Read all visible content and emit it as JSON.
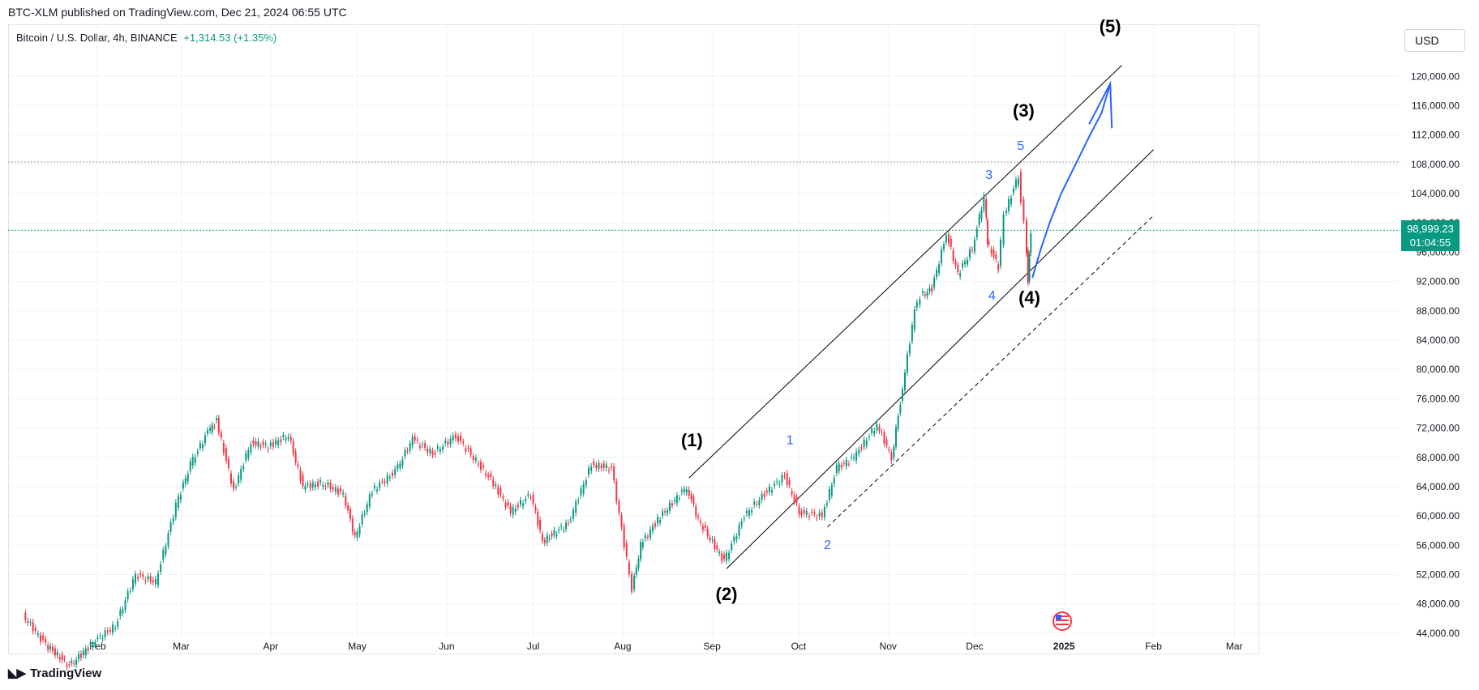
{
  "header": {
    "publication": "BTC-XLM published on TradingView.com, Dec 21, 2024 06:55 UTC"
  },
  "symbol": {
    "title": "Bitcoin / U.S. Dollar, 4h, BINANCE",
    "change": "+1,314.53 (+1.35%)"
  },
  "currency_button": "USD",
  "last_price": {
    "value": "98,999.23",
    "countdown": "01:04:55",
    "color": "#089981"
  },
  "footer": {
    "brand": "TradingView",
    "logo_icon": "tradingview-logo-icon"
  },
  "icons": {
    "event": "us-flag-event-icon"
  },
  "colors": {
    "up": "#089981",
    "down": "#f23645",
    "wave_blue": "#2962ff",
    "channel": "#000000"
  },
  "chart_data": {
    "type": "line",
    "title": "Bitcoin / U.S. Dollar, 4h, BINANCE",
    "xlabel": "",
    "ylabel": "",
    "x_ticks": [
      "Feb",
      "Mar",
      "Apr",
      "May",
      "Jun",
      "Jul",
      "Aug",
      "Sep",
      "Oct",
      "Nov",
      "Dec",
      "2025",
      "Feb",
      "Mar"
    ],
    "y_ticks": [
      "44,000.00",
      "48,000.00",
      "52,000.00",
      "56,000.00",
      "60,000.00",
      "64,000.00",
      "68,000.00",
      "72,000.00",
      "76,000.00",
      "80,000.00",
      "84,000.00",
      "88,000.00",
      "92,000.00",
      "96,000.00",
      "100,000.00",
      "104,000.00",
      "108,000.00",
      "112,000.00",
      "116,000.00",
      "120,000.00"
    ],
    "ylim": [
      42000,
      126000
    ],
    "grid": true,
    "series": [
      {
        "x": [
          "2024-01-07",
          "2024-01-14",
          "2024-01-23",
          "2024-02-01",
          "2024-02-08",
          "2024-02-15",
          "2024-02-22",
          "2024-02-29",
          "2024-03-05",
          "2024-03-11",
          "2024-03-14",
          "2024-03-20",
          "2024-03-26",
          "2024-04-01",
          "2024-04-08",
          "2024-04-13",
          "2024-04-20",
          "2024-04-27",
          "2024-05-01",
          "2024-05-07",
          "2024-05-15",
          "2024-05-21",
          "2024-05-28",
          "2024-06-05",
          "2024-06-12",
          "2024-06-18",
          "2024-06-24",
          "2024-07-01",
          "2024-07-05",
          "2024-07-14",
          "2024-07-22",
          "2024-07-29",
          "2024-08-05",
          "2024-08-08",
          "2024-08-14",
          "2024-08-24",
          "2024-08-28",
          "2024-09-06",
          "2024-09-13",
          "2024-09-20",
          "2024-09-27",
          "2024-10-02",
          "2024-10-10",
          "2024-10-15",
          "2024-10-21",
          "2024-10-29",
          "2024-11-03",
          "2024-11-06",
          "2024-11-11",
          "2024-11-13",
          "2024-11-17",
          "2024-11-22",
          "2024-11-26",
          "2024-12-01",
          "2024-12-05",
          "2024-12-06",
          "2024-12-10",
          "2024-12-12",
          "2024-12-17",
          "2024-12-19",
          "2024-12-20",
          "2024-12-21"
        ],
        "values": [
          46500,
          42800,
          39500,
          43000,
          45000,
          52000,
          51000,
          61500,
          67000,
          71500,
          73000,
          63500,
          70000,
          69500,
          71000,
          64000,
          64500,
          63000,
          57000,
          63500,
          66000,
          70500,
          68500,
          71000,
          67500,
          64500,
          60500,
          63000,
          56500,
          59000,
          67000,
          66500,
          50000,
          56000,
          59500,
          64000,
          59500,
          53800,
          60000,
          63000,
          65500,
          60500,
          60000,
          66500,
          68000,
          72500,
          68000,
          75500,
          88000,
          90000,
          91000,
          98500,
          93000,
          96500,
          103600,
          97500,
          94000,
          101000,
          106500,
          100000,
          92000,
          98999
        ]
      }
    ],
    "annotations": [
      {
        "text": "(1)",
        "x": "2024-08-25",
        "y": 69500
      },
      {
        "text": "(2)",
        "x": "2024-09-06",
        "y": 48500
      },
      {
        "text": "(3)",
        "x": "2024-12-18",
        "y": 114500
      },
      {
        "text": "(4)",
        "x": "2024-12-20",
        "y": 89000
      },
      {
        "text": "(5)",
        "x": "2025-01-17",
        "y": 126000
      },
      {
        "text": "1",
        "x": "2024-09-28",
        "y": 69800
      },
      {
        "text": "2",
        "x": "2024-10-11",
        "y": 55500
      },
      {
        "text": "3",
        "x": "2024-12-06",
        "y": 106000
      },
      {
        "text": "4",
        "x": "2024-12-07",
        "y": 89500
      },
      {
        "text": "5",
        "x": "2024-12-17",
        "y": 110000
      }
    ],
    "channel_lines": [
      {
        "style": "solid",
        "start": {
          "x": "2024-08-24",
          "y": 65200
        },
        "end": {
          "x": "2025-01-21",
          "y": 121500
        }
      },
      {
        "style": "solid",
        "start": {
          "x": "2024-09-06",
          "y": 52800
        },
        "end": {
          "x": "2025-02-01",
          "y": 110000
        }
      },
      {
        "style": "dashed",
        "start": {
          "x": "2024-10-11",
          "y": 58500
        },
        "end": {
          "x": "2025-02-01",
          "y": 101000
        }
      }
    ],
    "projection": {
      "x": [
        "2024-12-21",
        "2024-12-24",
        "2024-12-27",
        "2024-12-31",
        "2025-01-05",
        "2025-01-10",
        "2025-01-14",
        "2025-01-17"
      ],
      "y": [
        92500,
        96500,
        100000,
        104000,
        108000,
        112000,
        115000,
        119000
      ]
    }
  }
}
